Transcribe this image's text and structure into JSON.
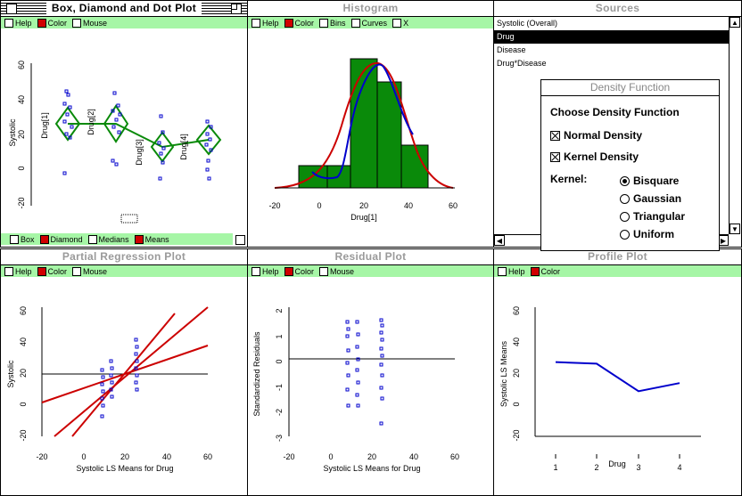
{
  "windows": {
    "box": {
      "title": "Box, Diamond and Dot Plot",
      "top_options": [
        "Help",
        "Color",
        "Mouse"
      ],
      "top_states": [
        false,
        true,
        false
      ],
      "bottom_options": [
        "Box",
        "Diamond",
        "Medians",
        "Means"
      ],
      "bottom_states": [
        false,
        true,
        false,
        true
      ],
      "ylabel": "Systolic",
      "yticks": [
        "60",
        "40",
        "20",
        "0",
        "-20"
      ],
      "group_labels": [
        "Drug[1]",
        "Drug[2]",
        "Drug[3]",
        "Drug[4]"
      ]
    },
    "histogram": {
      "title": "Histogram",
      "options": [
        "Help",
        "Color",
        "Bins",
        "Curves",
        "X"
      ],
      "states": [
        false,
        true,
        false,
        false,
        false
      ],
      "xlabel": "Drug[1]",
      "xticks": [
        "-20",
        "0",
        "20",
        "40",
        "60"
      ]
    },
    "sources": {
      "title": "Sources",
      "items": [
        "Systolic (Overall)",
        "Drug",
        "Disease",
        "Drug*Disease"
      ],
      "selected_index": 1
    },
    "partial": {
      "title": "Partial Regression Plot",
      "options": [
        "Help",
        "Color",
        "Mouse"
      ],
      "states": [
        false,
        true,
        false
      ],
      "xlabel": "Systolic LS Means for Drug",
      "ylabel": "Systolic",
      "xticks": [
        "-20",
        "0",
        "20",
        "40",
        "60"
      ],
      "yticks": [
        "60",
        "40",
        "20",
        "0",
        "-20"
      ]
    },
    "residual": {
      "title": "Residual Plot",
      "options": [
        "Help",
        "Color",
        "Mouse"
      ],
      "states": [
        false,
        true,
        false
      ],
      "xlabel": "Systolic LS Means for Drug",
      "ylabel": "Standardized Residuals",
      "xticks": [
        "-20",
        "0",
        "20",
        "40",
        "60"
      ],
      "yticks": [
        "2",
        "1",
        "0",
        "-1",
        "-2",
        "-3"
      ]
    },
    "profile": {
      "title": "Profile Plot",
      "options": [
        "Help",
        "Color"
      ],
      "states": [
        false,
        true
      ],
      "ylabel": "Systolic LS Means",
      "xlabel": "Drug",
      "xticks": [
        "1",
        "2",
        "3",
        "4"
      ],
      "yticks": [
        "60",
        "40",
        "20",
        "0",
        "-20"
      ]
    }
  },
  "dialog": {
    "title": "Density Function",
    "heading": "Choose Density Function",
    "checks": [
      "Normal Density",
      "Kernel Density"
    ],
    "kernel_label": "Kernel:",
    "kernels": [
      "Bisquare",
      "Gaussian",
      "Triangular",
      "Uniform"
    ],
    "selected_kernel": 0
  },
  "chart_data": [
    {
      "type": "line",
      "title": "Profile Plot",
      "xlabel": "Drug",
      "ylabel": "Systolic LS Means",
      "x": [
        1,
        2,
        3,
        4
      ],
      "values": [
        26,
        25,
        8,
        13
      ],
      "ylim": [
        -20,
        60
      ]
    },
    {
      "type": "bar",
      "title": "Histogram",
      "xlabel": "Drug[1]",
      "bins": [
        [
          -10,
          5
        ],
        [
          5,
          15
        ],
        [
          15,
          25
        ],
        [
          25,
          35
        ],
        [
          35,
          45
        ]
      ],
      "values": [
        1,
        1,
        6,
        4,
        2
      ],
      "xlim": [
        -20,
        60
      ]
    }
  ]
}
